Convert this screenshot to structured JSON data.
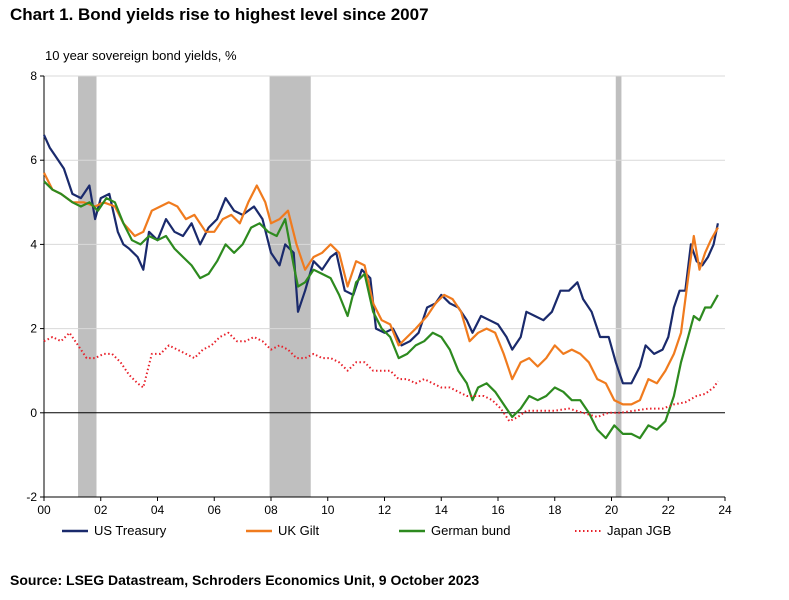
{
  "header": {
    "title": "Chart 1. Bond yields rise to highest level since 2007"
  },
  "footer": {
    "source": "Source: LSEG Datastream, Schroders Economics Unit, 9 October 2023"
  },
  "colors": {
    "us": "#1a2a6c",
    "uk": "#f07b1e",
    "de": "#2d8a1f",
    "jp": "#e8202a",
    "recession": "#bfbfbf",
    "grid": "#d9d9d9"
  },
  "chart_data": {
    "type": "line",
    "title": "Chart 1. Bond yields rise to highest level since 2007",
    "ylabel": "10 year sovereign bond yields, %",
    "xlabel": "",
    "xlim": [
      2000,
      2024
    ],
    "ylim": [
      -2,
      8
    ],
    "xticks": [
      2000,
      2002,
      2004,
      2006,
      2008,
      2010,
      2012,
      2014,
      2016,
      2018,
      2020,
      2022,
      2024
    ],
    "xtick_labels": [
      "00",
      "02",
      "04",
      "06",
      "08",
      "10",
      "12",
      "14",
      "16",
      "18",
      "20",
      "22",
      "24"
    ],
    "yticks": [
      -2,
      0,
      2,
      4,
      6,
      8
    ],
    "grid": true,
    "legend_position": "bottom",
    "shaded_periods": [
      [
        2001.2,
        2001.85
      ],
      [
        2007.95,
        2009.4
      ],
      [
        2020.15,
        2020.35
      ]
    ],
    "series": [
      {
        "name": "US Treasury",
        "color": "#1a2a6c",
        "style": "solid",
        "x": [
          2000.0,
          2000.2,
          2000.4,
          2000.7,
          2001.0,
          2001.3,
          2001.6,
          2001.8,
          2002.0,
          2002.3,
          2002.6,
          2002.8,
          2003.0,
          2003.3,
          2003.5,
          2003.7,
          2004.0,
          2004.3,
          2004.6,
          2004.9,
          2005.2,
          2005.5,
          2005.8,
          2006.1,
          2006.4,
          2006.7,
          2007.0,
          2007.4,
          2007.7,
          2008.0,
          2008.3,
          2008.5,
          2008.8,
          2008.95,
          2009.2,
          2009.5,
          2009.8,
          2010.1,
          2010.3,
          2010.6,
          2010.9,
          2011.2,
          2011.5,
          2011.7,
          2012.0,
          2012.3,
          2012.6,
          2012.9,
          2013.2,
          2013.5,
          2013.8,
          2014.0,
          2014.3,
          2014.6,
          2014.9,
          2015.1,
          2015.4,
          2015.7,
          2016.0,
          2016.3,
          2016.5,
          2016.8,
          2017.0,
          2017.3,
          2017.6,
          2017.9,
          2018.2,
          2018.5,
          2018.8,
          2019.0,
          2019.3,
          2019.6,
          2019.9,
          2020.15,
          2020.4,
          2020.7,
          2021.0,
          2021.2,
          2021.5,
          2021.8,
          2022.0,
          2022.2,
          2022.4,
          2022.6,
          2022.8,
          2023.0,
          2023.2,
          2023.4,
          2023.6,
          2023.75
        ],
        "values": [
          6.6,
          6.3,
          6.1,
          5.8,
          5.2,
          5.1,
          5.4,
          4.6,
          5.1,
          5.2,
          4.3,
          4.0,
          3.9,
          3.7,
          3.4,
          4.3,
          4.1,
          4.6,
          4.3,
          4.2,
          4.5,
          4.0,
          4.4,
          4.6,
          5.1,
          4.8,
          4.7,
          4.9,
          4.6,
          3.8,
          3.5,
          4.0,
          3.8,
          2.4,
          2.9,
          3.6,
          3.4,
          3.7,
          3.8,
          2.9,
          2.8,
          3.4,
          3.2,
          2.0,
          1.9,
          2.0,
          1.6,
          1.7,
          1.9,
          2.5,
          2.6,
          2.8,
          2.6,
          2.5,
          2.2,
          1.9,
          2.3,
          2.2,
          2.1,
          1.8,
          1.5,
          1.8,
          2.4,
          2.3,
          2.2,
          2.4,
          2.9,
          2.9,
          3.1,
          2.7,
          2.4,
          1.8,
          1.8,
          1.2,
          0.7,
          0.7,
          1.1,
          1.6,
          1.4,
          1.5,
          1.8,
          2.5,
          2.9,
          2.9,
          4.0,
          3.6,
          3.5,
          3.7,
          4.0,
          4.5
        ]
      },
      {
        "name": "UK Gilt",
        "color": "#f07b1e",
        "style": "solid",
        "x": [
          2000.0,
          2000.3,
          2000.6,
          2001.0,
          2001.4,
          2001.8,
          2002.1,
          2002.5,
          2002.8,
          2003.2,
          2003.5,
          2003.8,
          2004.1,
          2004.4,
          2004.7,
          2005.0,
          2005.3,
          2005.7,
          2006.0,
          2006.3,
          2006.6,
          2006.9,
          2007.2,
          2007.5,
          2007.8,
          2008.0,
          2008.3,
          2008.6,
          2008.9,
          2009.2,
          2009.5,
          2009.8,
          2010.1,
          2010.4,
          2010.7,
          2011.0,
          2011.3,
          2011.6,
          2011.9,
          2012.2,
          2012.5,
          2012.8,
          2013.1,
          2013.5,
          2013.8,
          2014.1,
          2014.4,
          2014.7,
          2015.0,
          2015.3,
          2015.6,
          2015.9,
          2016.2,
          2016.5,
          2016.8,
          2017.1,
          2017.4,
          2017.7,
          2018.0,
          2018.3,
          2018.6,
          2018.9,
          2019.2,
          2019.5,
          2019.8,
          2020.1,
          2020.4,
          2020.7,
          2021.0,
          2021.3,
          2021.6,
          2021.9,
          2022.2,
          2022.45,
          2022.7,
          2022.9,
          2023.1,
          2023.3,
          2023.5,
          2023.75
        ],
        "values": [
          5.7,
          5.3,
          5.2,
          5.0,
          5.0,
          4.9,
          5.0,
          4.9,
          4.5,
          4.2,
          4.3,
          4.8,
          4.9,
          5.0,
          4.9,
          4.6,
          4.7,
          4.3,
          4.3,
          4.6,
          4.7,
          4.5,
          5.0,
          5.4,
          5.0,
          4.5,
          4.6,
          4.8,
          4.0,
          3.4,
          3.7,
          3.8,
          4.0,
          3.8,
          3.0,
          3.6,
          3.5,
          2.6,
          2.2,
          2.1,
          1.6,
          1.8,
          2.0,
          2.3,
          2.6,
          2.8,
          2.7,
          2.4,
          1.7,
          1.9,
          2.0,
          1.9,
          1.4,
          0.8,
          1.2,
          1.3,
          1.1,
          1.3,
          1.6,
          1.4,
          1.5,
          1.4,
          1.2,
          0.8,
          0.7,
          0.3,
          0.2,
          0.2,
          0.3,
          0.8,
          0.7,
          1.0,
          1.4,
          1.9,
          3.2,
          4.2,
          3.4,
          3.8,
          4.1,
          4.4
        ]
      },
      {
        "name": "German bund",
        "color": "#2d8a1f",
        "style": "solid",
        "x": [
          2000.0,
          2000.3,
          2000.6,
          2001.0,
          2001.3,
          2001.6,
          2001.9,
          2002.2,
          2002.5,
          2002.8,
          2003.1,
          2003.4,
          2003.7,
          2004.0,
          2004.3,
          2004.6,
          2004.9,
          2005.2,
          2005.5,
          2005.8,
          2006.1,
          2006.4,
          2006.7,
          2007.0,
          2007.3,
          2007.6,
          2007.9,
          2008.2,
          2008.5,
          2008.8,
          2008.95,
          2009.2,
          2009.5,
          2009.8,
          2010.1,
          2010.4,
          2010.7,
          2011.0,
          2011.3,
          2011.6,
          2011.9,
          2012.2,
          2012.5,
          2012.8,
          2013.1,
          2013.4,
          2013.7,
          2014.0,
          2014.3,
          2014.6,
          2014.9,
          2015.1,
          2015.3,
          2015.6,
          2015.9,
          2016.2,
          2016.5,
          2016.8,
          2017.1,
          2017.4,
          2017.7,
          2018.0,
          2018.3,
          2018.6,
          2018.9,
          2019.2,
          2019.5,
          2019.8,
          2020.1,
          2020.4,
          2020.7,
          2021.0,
          2021.3,
          2021.6,
          2021.9,
          2022.2,
          2022.45,
          2022.7,
          2022.9,
          2023.1,
          2023.3,
          2023.5,
          2023.75
        ],
        "values": [
          5.5,
          5.3,
          5.2,
          5.0,
          4.9,
          5.0,
          4.8,
          5.1,
          5.0,
          4.5,
          4.1,
          4.0,
          4.2,
          4.1,
          4.2,
          3.9,
          3.7,
          3.5,
          3.2,
          3.3,
          3.6,
          4.0,
          3.8,
          4.0,
          4.4,
          4.5,
          4.3,
          4.2,
          4.6,
          3.5,
          3.0,
          3.1,
          3.4,
          3.3,
          3.2,
          2.8,
          2.3,
          3.1,
          3.3,
          2.4,
          2.0,
          1.8,
          1.3,
          1.4,
          1.6,
          1.7,
          1.9,
          1.8,
          1.5,
          1.0,
          0.7,
          0.3,
          0.6,
          0.7,
          0.5,
          0.2,
          -0.1,
          0.1,
          0.4,
          0.3,
          0.4,
          0.6,
          0.5,
          0.3,
          0.3,
          0.0,
          -0.4,
          -0.6,
          -0.3,
          -0.5,
          -0.5,
          -0.6,
          -0.3,
          -0.4,
          -0.2,
          0.4,
          1.2,
          1.8,
          2.3,
          2.2,
          2.5,
          2.5,
          2.8
        ]
      },
      {
        "name": "Japan JGB",
        "color": "#e8202a",
        "style": "dotted",
        "x": [
          2000.0,
          2000.3,
          2000.6,
          2000.9,
          2001.2,
          2001.5,
          2001.8,
          2002.1,
          2002.4,
          2002.7,
          2003.0,
          2003.3,
          2003.5,
          2003.8,
          2004.1,
          2004.4,
          2004.7,
          2005.0,
          2005.3,
          2005.6,
          2005.9,
          2006.2,
          2006.5,
          2006.8,
          2007.1,
          2007.4,
          2007.7,
          2008.0,
          2008.3,
          2008.6,
          2008.9,
          2009.2,
          2009.5,
          2009.8,
          2010.1,
          2010.4,
          2010.7,
          2011.0,
          2011.3,
          2011.6,
          2011.9,
          2012.2,
          2012.5,
          2012.8,
          2013.1,
          2013.4,
          2013.7,
          2014.0,
          2014.3,
          2014.6,
          2014.9,
          2015.2,
          2015.5,
          2015.8,
          2016.1,
          2016.4,
          2016.7,
          2017.0,
          2017.5,
          2018.0,
          2018.5,
          2019.0,
          2019.5,
          2019.9,
          2020.3,
          2020.8,
          2021.3,
          2021.8,
          2022.2,
          2022.6,
          2023.0,
          2023.3,
          2023.6,
          2023.75
        ],
        "values": [
          1.7,
          1.8,
          1.7,
          1.9,
          1.6,
          1.3,
          1.3,
          1.4,
          1.4,
          1.2,
          0.9,
          0.7,
          0.6,
          1.4,
          1.4,
          1.6,
          1.5,
          1.4,
          1.3,
          1.5,
          1.6,
          1.8,
          1.9,
          1.7,
          1.7,
          1.8,
          1.7,
          1.5,
          1.6,
          1.5,
          1.3,
          1.3,
          1.4,
          1.3,
          1.3,
          1.2,
          1.0,
          1.2,
          1.2,
          1.0,
          1.0,
          1.0,
          0.8,
          0.8,
          0.7,
          0.8,
          0.7,
          0.6,
          0.6,
          0.5,
          0.4,
          0.4,
          0.4,
          0.3,
          0.1,
          -0.2,
          -0.1,
          0.05,
          0.05,
          0.05,
          0.1,
          0.0,
          -0.1,
          0.0,
          0.0,
          0.05,
          0.1,
          0.1,
          0.2,
          0.25,
          0.4,
          0.45,
          0.6,
          0.75
        ]
      }
    ]
  }
}
